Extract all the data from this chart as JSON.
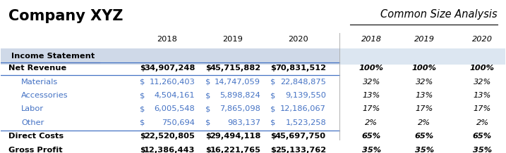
{
  "title_left": "Company XYZ",
  "title_right": "Common Size Analysis",
  "section_header": "Income Statement",
  "col_headers_financial": [
    "2018",
    "2019",
    "2020"
  ],
  "col_headers_pct": [
    "2018",
    "2019",
    "2020"
  ],
  "rows": [
    {
      "label": "Net Revenue",
      "vals": [
        "$ 34,907,248",
        "$ 45,715,882",
        "$ 70,831,512"
      ],
      "pcts": [
        "100%",
        "100%",
        "100%"
      ],
      "style": "bold",
      "border_top": true,
      "border_bottom": true,
      "indent": false
    },
    {
      "label": "Materials",
      "vals": [
        "$ 11,260,403",
        "$ 14,747,059",
        "$ 22,848,875"
      ],
      "pcts": [
        "32%",
        "32%",
        "32%"
      ],
      "style": "color",
      "border_top": false,
      "border_bottom": false,
      "indent": true
    },
    {
      "label": "Accessories",
      "vals": [
        "$ 4,504,161",
        "$ 5,898,824",
        "$ 9,139,550"
      ],
      "pcts": [
        "13%",
        "13%",
        "13%"
      ],
      "style": "color",
      "border_top": false,
      "border_bottom": false,
      "indent": true
    },
    {
      "label": "Labor",
      "vals": [
        "$ 6,005,548",
        "$ 7,865,098",
        "$ 12,186,067"
      ],
      "pcts": [
        "17%",
        "17%",
        "17%"
      ],
      "style": "color",
      "border_top": false,
      "border_bottom": false,
      "indent": true
    },
    {
      "label": "Other",
      "vals": [
        "$ 750,694",
        "$ 983,137",
        "$ 1,523,258"
      ],
      "pcts": [
        "2%",
        "2%",
        "2%"
      ],
      "style": "color",
      "border_top": false,
      "border_bottom": false,
      "indent": true
    },
    {
      "label": "Direct Costs",
      "vals": [
        "$ 22,520,805",
        "$ 29,494,118",
        "$ 45,697,750"
      ],
      "pcts": [
        "65%",
        "65%",
        "65%"
      ],
      "style": "bold",
      "border_top": true,
      "border_bottom": false,
      "indent": false
    },
    {
      "label": "Gross Profit",
      "vals": [
        "$ 12,386,443",
        "$ 16,221,765",
        "$ 25,133,762"
      ],
      "pcts": [
        "35%",
        "35%",
        "35%"
      ],
      "style": "bold",
      "border_top": true,
      "border_bottom": true,
      "indent": false
    }
  ],
  "bg_color": "#ffffff",
  "section_bg_left": "#cfd9e8",
  "section_bg_right": "#dce6f1",
  "color_text": "#4472c4",
  "bold_color": "#000000",
  "line_color": "#4472c4",
  "divider_line_color": "#b0b0b0",
  "font_size": 8.2,
  "title_font_size": 15,
  "subtitle_font_size": 10.5
}
